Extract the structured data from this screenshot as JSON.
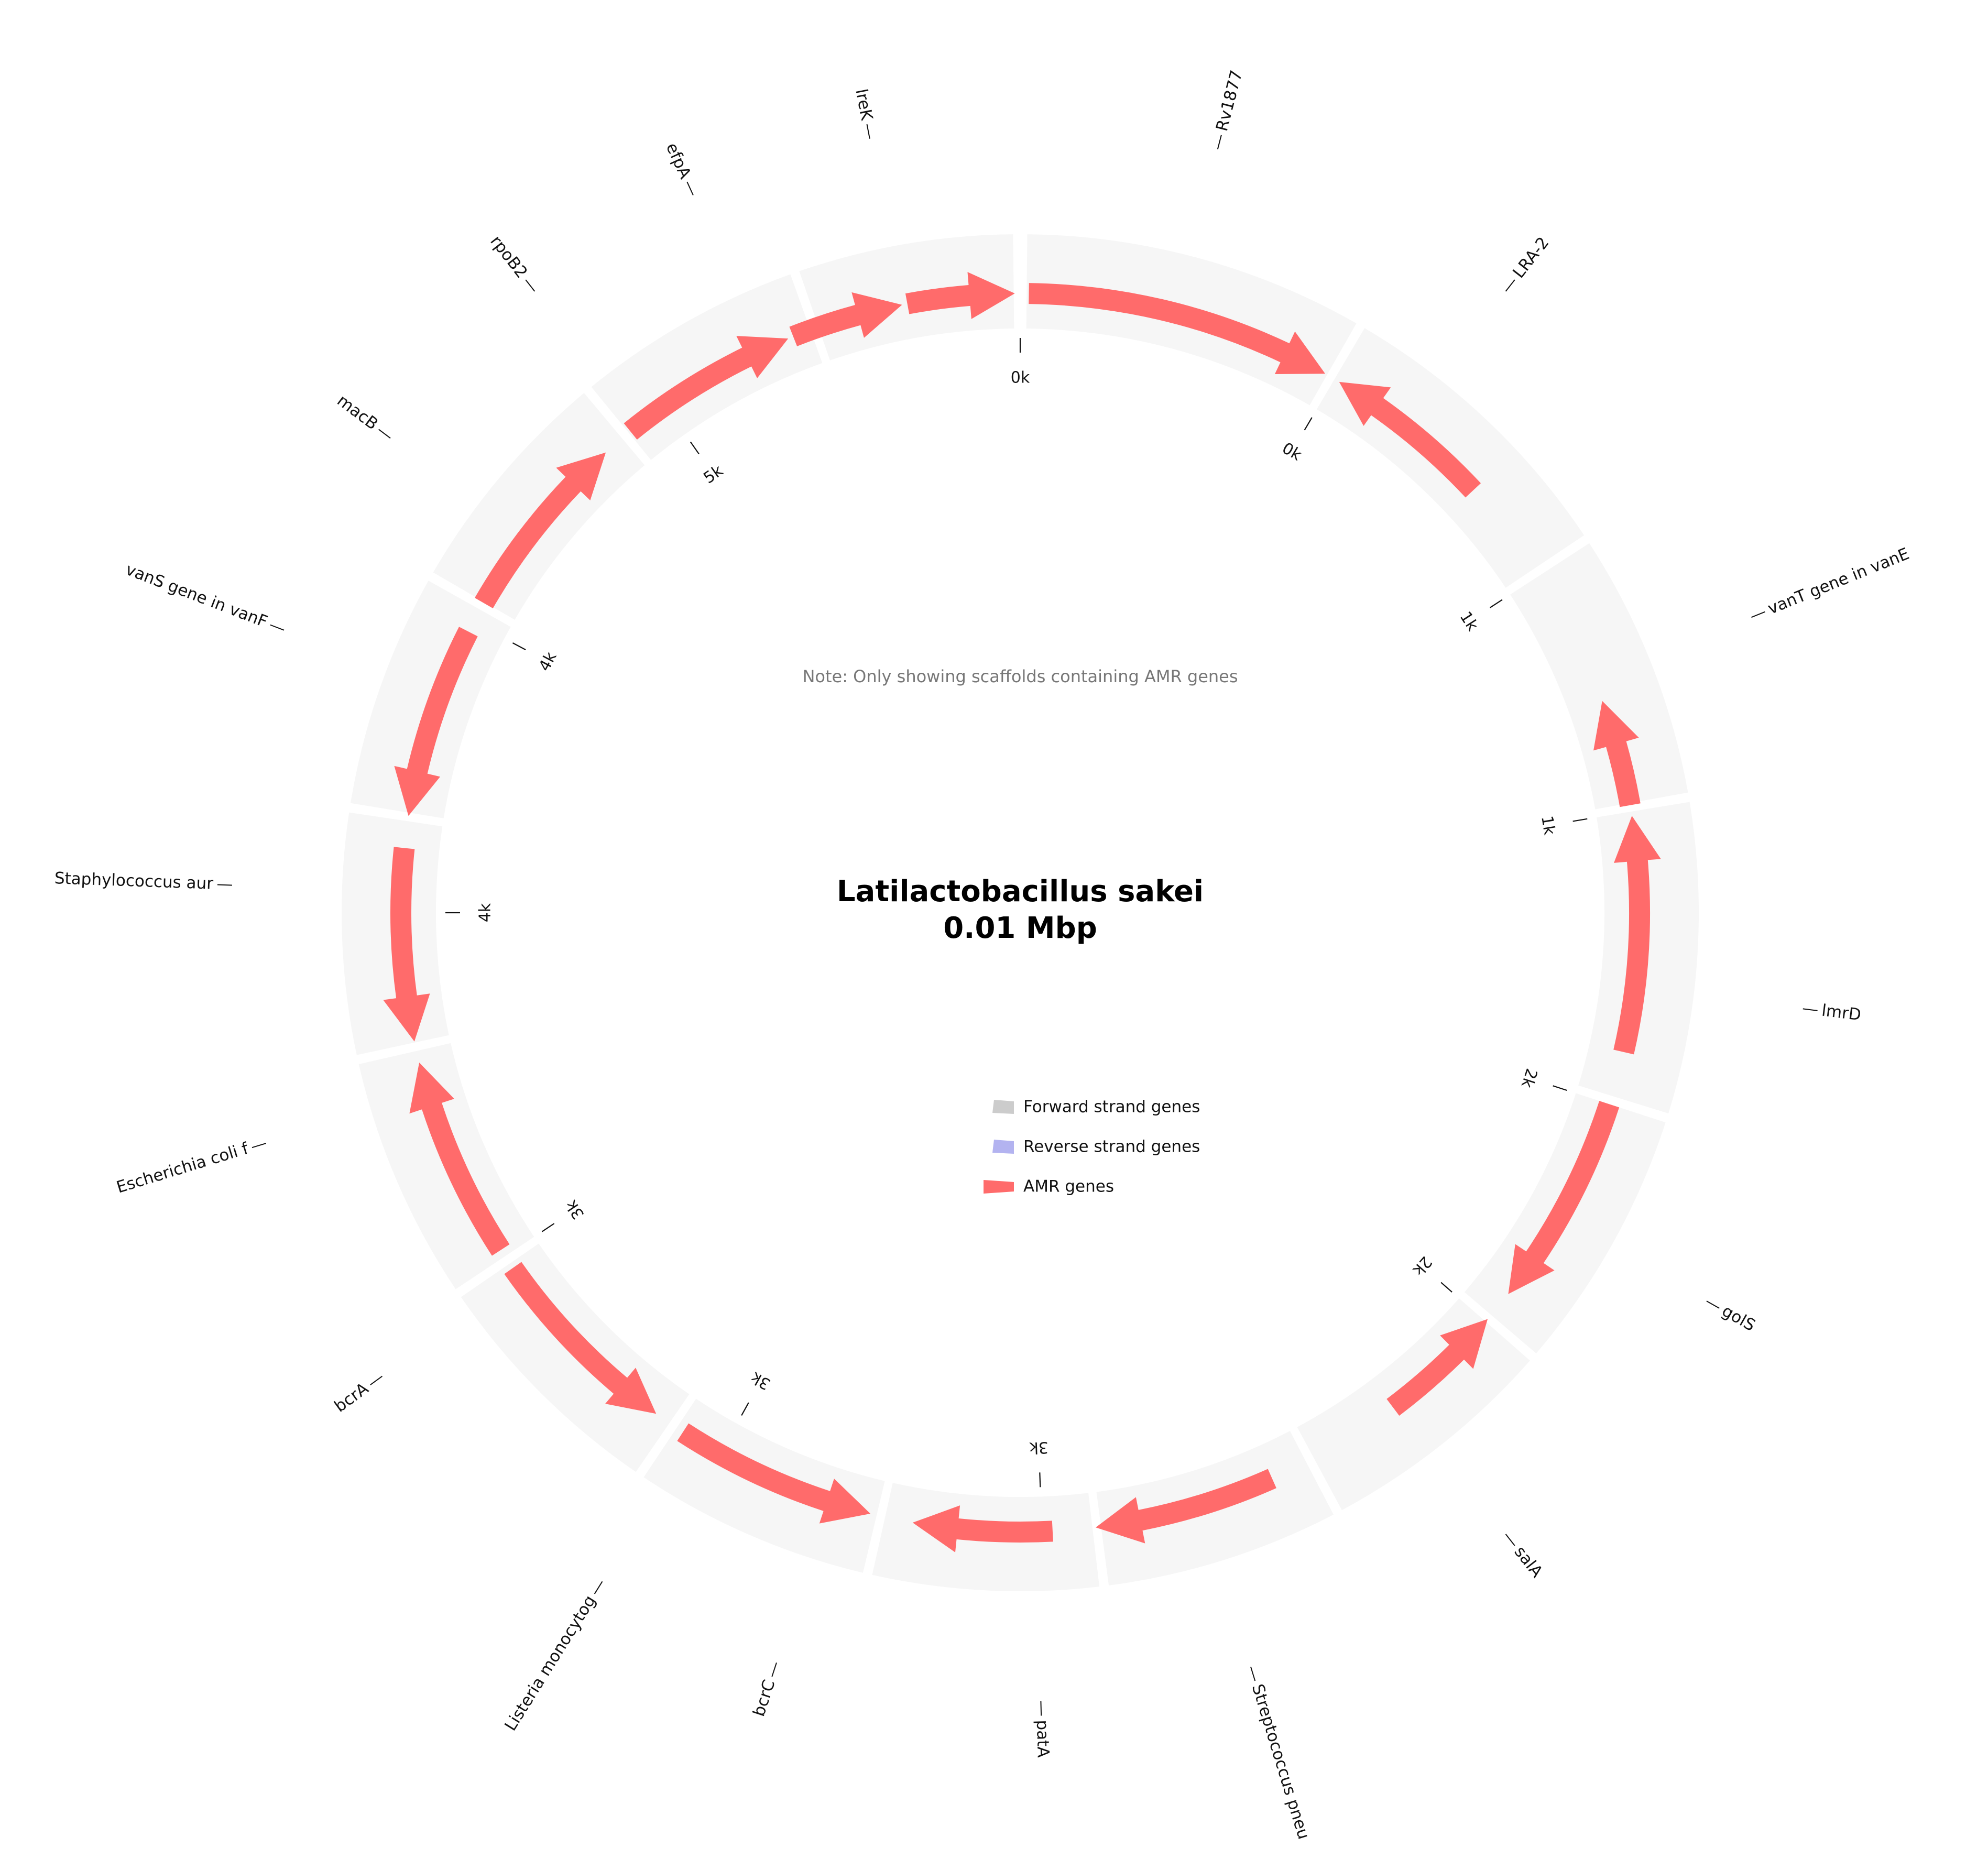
{
  "title": {
    "line1": "Latilactobacillus sakei",
    "line2": "0.01 Mbp"
  },
  "note": "Note: Only showing scaffolds containing AMR genes",
  "legend": [
    {
      "label": "Forward strand genes",
      "color": "#cccccc",
      "style": "patch"
    },
    {
      "label": "Reverse strand genes",
      "color": "#b3b3f0",
      "style": "patch"
    },
    {
      "label": "AMR genes",
      "color": "#ff6b6b",
      "style": "arrow"
    }
  ],
  "colors": {
    "amr": "#ff6b6b",
    "scaffold": "#f6f6f6",
    "forward": "#cccccc",
    "reverse": "#b3b3f0"
  },
  "scaffolds": [
    {
      "start": 0.6,
      "end": 29.7
    },
    {
      "start": 30.5,
      "end": 56.2
    },
    {
      "start": 57.0,
      "end": 79.8
    },
    {
      "start": 80.6,
      "end": 107.2
    },
    {
      "start": 108.0,
      "end": 130.5
    },
    {
      "start": 131.3,
      "end": 151.7
    },
    {
      "start": 152.5,
      "end": 172.5
    },
    {
      "start": 173.3,
      "end": 192.6
    },
    {
      "start": 193.4,
      "end": 213.7
    },
    {
      "start": 214.5,
      "end": 235.5
    },
    {
      "start": 236.3,
      "end": 257.1
    },
    {
      "start": 257.9,
      "end": 278.5
    },
    {
      "start": 279.3,
      "end": 299.3
    },
    {
      "start": 300.1,
      "end": 320.0
    },
    {
      "start": 320.8,
      "end": 340.2
    },
    {
      "start": 341.0,
      "end": 359.4
    }
  ],
  "amr_genes": [
    {
      "name": "Rv1877",
      "start": 0.8,
      "end": 29.5,
      "strand": "+",
      "label_angle": 14.5
    },
    {
      "name": "LRA-2",
      "start": 31.0,
      "end": 47.0,
      "strand": "-",
      "label_angle": 38.0
    },
    {
      "name": "vanT gene in vanE",
      "start": 70.0,
      "end": 80.0,
      "strand": "-",
      "label_angle": 68.0
    },
    {
      "name": "lmrD",
      "start": 81.0,
      "end": 103.0,
      "strand": "-",
      "label_angle": 97.0
    },
    {
      "name": "golS",
      "start": 108.0,
      "end": 128.0,
      "strand": "+",
      "label_angle": 119.5
    },
    {
      "name": "salA",
      "start": 131.0,
      "end": 143.0,
      "strand": "-",
      "label_angle": 142.0
    },
    {
      "name": "Streptococcus pneu",
      "start": 156.0,
      "end": 173.0,
      "strand": "+",
      "label_angle": 163.0
    },
    {
      "name": "patA",
      "start": 177.0,
      "end": 190.0,
      "strand": "+",
      "label_angle": 178.5
    },
    {
      "name": "bcrC",
      "start": 194.0,
      "end": 213.0,
      "strand": "-",
      "label_angle": 198.0
    },
    {
      "name": "Listeria monocytog",
      "start": 216.0,
      "end": 235.0,
      "strand": "-",
      "label_angle": 212.0
    },
    {
      "name": "bcrA",
      "start": 237.0,
      "end": 256.0,
      "strand": "+",
      "label_angle": 234.0
    },
    {
      "name": "Escherichia coli f",
      "start": 258.0,
      "end": 276.0,
      "strand": "-",
      "label_angle": 253.0
    },
    {
      "name": "Staphylococcus aur",
      "start": 279.0,
      "end": 297.0,
      "strand": "-",
      "label_angle": 272.0
    },
    {
      "name": "vanS gene in vanF",
      "start": 300.0,
      "end": 318.0,
      "strand": "+",
      "label_angle": 291.0
    },
    {
      "name": "macB",
      "start": 321.0,
      "end": 338.0,
      "strand": "+",
      "label_angle": 307.0
    },
    {
      "name": "rpoB2",
      "start": 320.0,
      "end": 338.0,
      "strand": "+",
      "label_angle": 322.0,
      "arc_hidden": true
    },
    {
      "name": "efpA",
      "start": 338.5,
      "end": 349.0,
      "strand": "+",
      "label_angle": 335.5
    },
    {
      "name": "lreK",
      "start": 349.5,
      "end": 359.5,
      "strand": "+",
      "label_angle": 349.0
    }
  ],
  "ticks": [
    {
      "label": "0k",
      "angle": 0.0
    },
    {
      "label": "0k",
      "angle": 30.5
    },
    {
      "label": "1k",
      "angle": 57.0
    },
    {
      "label": "1k",
      "angle": 80.6
    },
    {
      "label": "2k",
      "angle": 108.0
    },
    {
      "label": "2k",
      "angle": 131.3
    },
    {
      "label": "3k",
      "angle": 178.0
    },
    {
      "label": "3k",
      "angle": 209.0
    },
    {
      "label": "3k",
      "angle": 236.3
    },
    {
      "label": "4k",
      "angle": 270.0
    },
    {
      "label": "4k",
      "angle": 298.0
    },
    {
      "label": "5k",
      "angle": 325.0
    }
  ]
}
